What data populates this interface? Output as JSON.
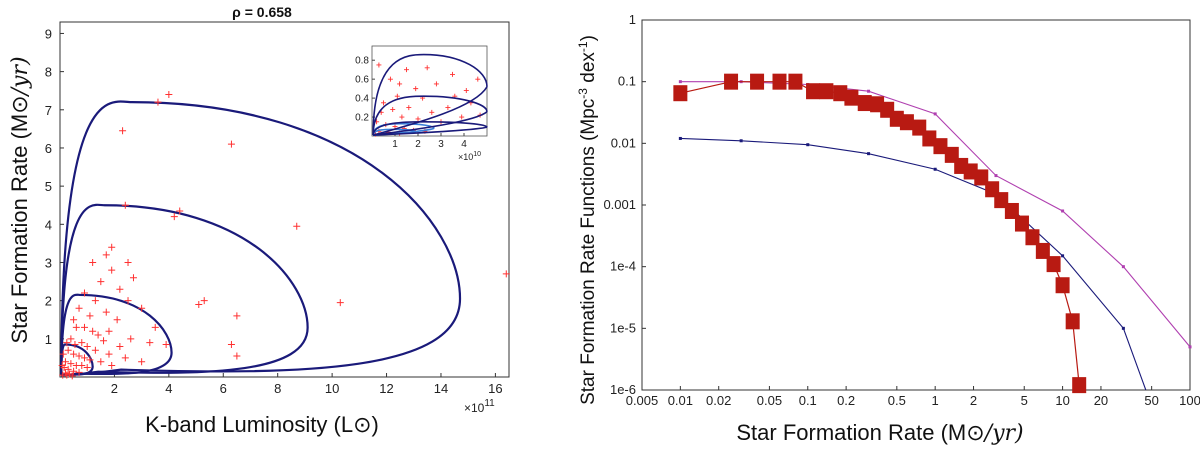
{
  "chart_data": [
    {
      "type": "scatter",
      "title": "ρ = 0.658",
      "xlabel": "K-band Luminosity (L",
      "xlabel_end": ")",
      "ylabel": "Star Formation Rate (M",
      "ylabel_unit": "/yr)",
      "x_multiplier": "×10",
      "x_multiplier_exp": "11",
      "xlim": [
        0,
        16.5
      ],
      "ylim": [
        0,
        9.3
      ],
      "xticks": [
        2,
        4,
        6,
        8,
        10,
        12,
        14,
        16
      ],
      "yticks": [
        1,
        2,
        3,
        4,
        5,
        6,
        7,
        8,
        9
      ],
      "contours": [
        {
          "name": "contour-1",
          "x_max": 1.2,
          "y_max": 0.85
        },
        {
          "name": "contour-2",
          "x_max": 4.1,
          "y_max": 2.15
        },
        {
          "name": "contour-3",
          "x_max": 9.1,
          "y_max": 4.5
        },
        {
          "name": "contour-4",
          "x_max": 14.7,
          "y_max": 7.2
        }
      ],
      "points": [
        [
          3.6,
          7.2
        ],
        [
          4.0,
          7.4
        ],
        [
          2.3,
          6.45
        ],
        [
          6.3,
          6.1
        ],
        [
          2.4,
          4.5
        ],
        [
          4.2,
          4.2
        ],
        [
          4.4,
          4.35
        ],
        [
          8.7,
          3.95
        ],
        [
          1.9,
          3.4
        ],
        [
          1.7,
          3.2
        ],
        [
          2.5,
          3.0
        ],
        [
          1.2,
          3.0
        ],
        [
          1.9,
          2.8
        ],
        [
          2.7,
          2.6
        ],
        [
          1.5,
          2.5
        ],
        [
          2.2,
          2.3
        ],
        [
          0.9,
          2.2
        ],
        [
          1.3,
          2.0
        ],
        [
          5.1,
          1.9
        ],
        [
          5.3,
          2.0
        ],
        [
          10.3,
          1.95
        ],
        [
          2.5,
          2.0
        ],
        [
          3.0,
          1.8
        ],
        [
          1.7,
          1.7
        ],
        [
          0.7,
          1.8
        ],
        [
          1.1,
          1.6
        ],
        [
          6.5,
          1.6
        ],
        [
          2.1,
          1.5
        ],
        [
          3.5,
          1.3
        ],
        [
          1.8,
          1.2
        ],
        [
          2.6,
          1.0
        ],
        [
          0.5,
          1.5
        ],
        [
          0.6,
          1.3
        ],
        [
          0.9,
          1.3
        ],
        [
          1.2,
          1.2
        ],
        [
          1.4,
          1.1
        ],
        [
          3.3,
          0.9
        ],
        [
          3.9,
          0.85
        ],
        [
          6.3,
          0.85
        ],
        [
          6.5,
          0.55
        ],
        [
          1.6,
          0.95
        ],
        [
          2.2,
          0.8
        ],
        [
          0.4,
          1.0
        ],
        [
          0.8,
          0.9
        ],
        [
          1.0,
          0.8
        ],
        [
          1.3,
          0.7
        ],
        [
          1.8,
          0.6
        ],
        [
          2.4,
          0.5
        ],
        [
          3.0,
          0.4
        ],
        [
          0.3,
          0.7
        ],
        [
          0.5,
          0.6
        ],
        [
          0.7,
          0.55
        ],
        [
          0.9,
          0.5
        ],
        [
          1.1,
          0.45
        ],
        [
          1.5,
          0.4
        ],
        [
          0.2,
          0.4
        ],
        [
          0.4,
          0.35
        ],
        [
          0.6,
          0.3
        ],
        [
          0.8,
          0.3
        ],
        [
          1.0,
          0.25
        ],
        [
          0.15,
          0.25
        ],
        [
          0.3,
          0.2
        ],
        [
          0.5,
          0.15
        ],
        [
          0.7,
          0.12
        ],
        [
          0.2,
          0.1
        ],
        [
          0.35,
          0.08
        ],
        [
          0.1,
          0.05
        ],
        [
          0.25,
          0.05
        ],
        [
          0.45,
          0.03
        ],
        [
          0.12,
          0.6
        ],
        [
          0.55,
          0.85
        ],
        [
          0.25,
          0.9
        ],
        [
          0.08,
          0.3
        ],
        [
          1.9,
          0.3
        ],
        [
          16.4,
          2.7
        ]
      ]
    },
    {
      "type": "line",
      "title": "",
      "xlabel": "Star Formation Rate (M",
      "xlabel_unit": "/yr)",
      "ylabel": "Star Formation Rate Functions (Mpc",
      "ylabel_unit": " dex",
      "ylabel_end": ")",
      "xscale": "log",
      "yscale": "log",
      "xlim": [
        0.005,
        100
      ],
      "ylim": [
        1e-06,
        1
      ],
      "xticks": [
        0.005,
        0.01,
        0.02,
        0.05,
        0.1,
        0.2,
        0.5,
        1,
        2,
        5,
        10,
        20,
        50,
        100
      ],
      "xtick_labels": [
        "0.005",
        "0.01",
        "0.02",
        "0.05",
        "0.1",
        "0.2",
        "0.5",
        "1",
        "2",
        "5",
        "10",
        "20",
        "50",
        "100"
      ],
      "yticks": [
        1e-06,
        1e-05,
        0.0001,
        0.001,
        0.01,
        0.1,
        1
      ],
      "ytick_labels": [
        "1e-6",
        "1e-5",
        "1e-4",
        "0.001",
        "0.01",
        "0.1",
        "1"
      ],
      "series": [
        {
          "name": "magenta-model",
          "color": "#b040b0",
          "x": [
            0.01,
            0.03,
            0.1,
            0.3,
            1,
            3,
            10,
            30,
            100
          ],
          "y": [
            0.1,
            0.1,
            0.09,
            0.07,
            0.03,
            0.003,
            0.0008,
            0.0001,
            5e-06
          ]
        },
        {
          "name": "blue-model",
          "color": "#1a1a7a",
          "x": [
            0.01,
            0.03,
            0.1,
            0.3,
            1,
            3,
            10,
            30,
            45
          ],
          "y": [
            0.012,
            0.011,
            0.0095,
            0.0068,
            0.0038,
            0.0015,
            0.00015,
            1e-05,
            9e-07
          ]
        },
        {
          "name": "red-observed",
          "color": "#b81a12",
          "x": [
            0.01,
            0.025,
            0.04,
            0.06,
            0.08,
            0.11,
            0.14,
            0.18,
            0.22,
            0.28,
            0.35,
            0.42,
            0.5,
            0.6,
            0.75,
            0.9,
            1.1,
            1.35,
            1.6,
            1.9,
            2.3,
            2.8,
            3.3,
            4,
            4.8,
            5.8,
            7,
            8.5,
            10,
            12,
            13.5
          ],
          "y": [
            0.065,
            0.1,
            0.1,
            0.1,
            0.1,
            0.07,
            0.07,
            0.065,
            0.055,
            0.045,
            0.043,
            0.035,
            0.025,
            0.022,
            0.018,
            0.012,
            0.009,
            0.0065,
            0.0043,
            0.0035,
            0.0028,
            0.0018,
            0.0012,
            0.0008,
            0.0005,
            0.0003,
            0.00018,
            0.00011,
            5e-05,
            1.3e-05,
            1.2e-06
          ]
        }
      ]
    }
  ],
  "inset": {
    "x_multiplier": "×10",
    "x_multiplier_exp": "10",
    "xlim": [
      0,
      5
    ],
    "ylim": [
      0,
      0.95
    ],
    "xticks": [
      1,
      2,
      3,
      4
    ],
    "yticks": [
      0.2,
      0.4,
      0.6,
      0.8
    ],
    "ytick_labels": [
      "0.2",
      "0.4",
      "0.6",
      "0.8"
    ],
    "contours": [
      {
        "name": "inset-contour-1",
        "x_max": 1.9,
        "y_max": 0.07,
        "color": "#3a7ed8"
      },
      {
        "name": "inset-contour-2",
        "x_max": 2.7,
        "y_max": 0.13,
        "color": "#3a7ed8"
      },
      {
        "name": "inset-contour-3",
        "x_max": 5.4,
        "y_max": 0.15,
        "color": "#1a1a7a"
      },
      {
        "name": "inset-contour-4",
        "x_max": 5.6,
        "y_max": 0.42,
        "color": "#1a1a7a"
      },
      {
        "name": "inset-contour-5",
        "x_max": 5.8,
        "y_max": 0.86,
        "color": "#1a1a7a"
      }
    ],
    "points": [
      [
        0.3,
        0.75
      ],
      [
        1.5,
        0.7
      ],
      [
        2.8,
        0.55
      ],
      [
        3.6,
        0.42
      ],
      [
        4.3,
        0.35
      ],
      [
        4.7,
        0.22
      ],
      [
        3.3,
        0.3
      ],
      [
        0.8,
        0.6
      ],
      [
        1.9,
        0.5
      ],
      [
        2.2,
        0.4
      ],
      [
        1.1,
        0.42
      ],
      [
        0.5,
        0.35
      ],
      [
        1.6,
        0.3
      ],
      [
        2.6,
        0.25
      ],
      [
        3.9,
        0.2
      ],
      [
        0.4,
        0.25
      ],
      [
        0.9,
        0.28
      ],
      [
        1.3,
        0.2
      ],
      [
        2.0,
        0.18
      ],
      [
        3.0,
        0.15
      ],
      [
        0.2,
        0.15
      ],
      [
        0.6,
        0.12
      ],
      [
        1.0,
        0.1
      ],
      [
        1.4,
        0.08
      ],
      [
        1.8,
        0.06
      ],
      [
        2.3,
        0.05
      ],
      [
        0.3,
        0.05
      ],
      [
        0.7,
        0.04
      ],
      [
        1.2,
        0.03
      ],
      [
        0.15,
        0.02
      ],
      [
        4.1,
        0.48
      ],
      [
        4.6,
        0.6
      ],
      [
        3.5,
        0.65
      ],
      [
        2.4,
        0.72
      ],
      [
        1.2,
        0.55
      ]
    ]
  },
  "colors": {
    "contour": "#1a1a7a",
    "points": "#ff3030",
    "frame": "#333333"
  }
}
